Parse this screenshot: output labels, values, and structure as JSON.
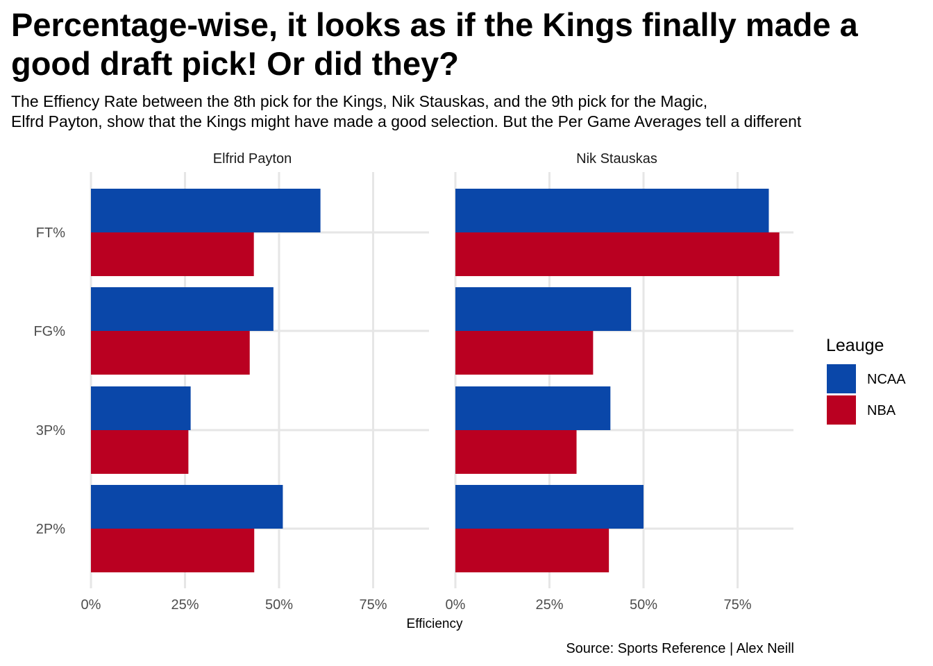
{
  "chart_data": {
    "type": "bar",
    "orientation": "horizontal",
    "title": "Percentage-wise, it looks as if the Kings finally made a good draft pick! Or did they?",
    "subtitle": "The Effiency Rate between the 8th pick for the Kings, Nik Stauskas, and the 9th pick for the Magic,\nElfrd Payton, show that the Kings might have made a good selection. But the Per Game Averages tell a different",
    "caption": "Source: Sports Reference | Alex Neill",
    "xlabel": "Efficiency",
    "ylabel": "",
    "xlim": [
      0,
      90
    ],
    "xticks": [
      0,
      25,
      50,
      75
    ],
    "xtick_labels": [
      "0%",
      "25%",
      "50%",
      "75%"
    ],
    "categories": [
      "FT%",
      "FG%",
      "3P%",
      "2P%"
    ],
    "legend": {
      "title": "Leauge",
      "position": "right",
      "entries": [
        {
          "name": "NCAA",
          "color": "#0a47a9"
        },
        {
          "name": "NBA",
          "color": "#ba0021"
        }
      ]
    },
    "grid": true,
    "facets": [
      {
        "label": "Elfrid Payton",
        "series": [
          {
            "name": "NCAA",
            "color": "#0a47a9",
            "values": [
              61,
              48.5,
              26.5,
              51
            ]
          },
          {
            "name": "NBA",
            "color": "#ba0021",
            "values": [
              43.3,
              42.2,
              25.9,
              43.4
            ]
          }
        ]
      },
      {
        "label": "Nik Stauskas",
        "series": [
          {
            "name": "NCAA",
            "color": "#0a47a9",
            "values": [
              83.3,
              46.7,
              41.2,
              50
            ]
          },
          {
            "name": "NBA",
            "color": "#ba0021",
            "values": [
              86.1,
              36.6,
              32.2,
              40.8
            ]
          }
        ]
      }
    ]
  }
}
